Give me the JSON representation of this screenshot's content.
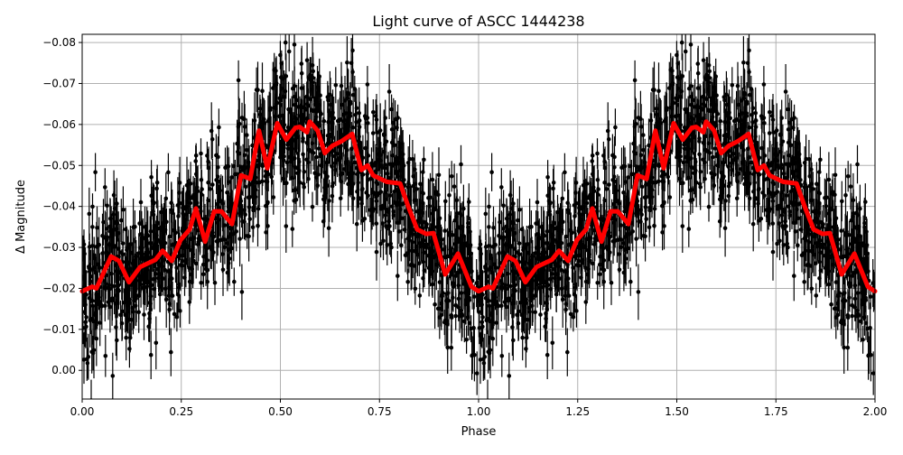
{
  "chart_data": {
    "type": "scatter",
    "title": "Light curve of ASCC 1444238",
    "xlabel": "Phase",
    "ylabel": "Δ Magnitude",
    "xlim": [
      0.0,
      2.0
    ],
    "ylim": [
      0.007,
      -0.082
    ],
    "y_inverted": true,
    "grid": true,
    "xticks": [
      "0.00",
      "0.25",
      "0.50",
      "0.75",
      "1.00",
      "1.25",
      "1.50",
      "1.75",
      "2.00"
    ],
    "yticks": [
      "−0.08",
      "−0.07",
      "−0.06",
      "−0.05",
      "−0.04",
      "−0.03",
      "−0.02",
      "−0.01",
      "0.00"
    ],
    "ytick_values": [
      -0.08,
      -0.07,
      -0.06,
      -0.05,
      -0.04,
      -0.03,
      -0.02,
      -0.01,
      0.0
    ],
    "xtick_values": [
      0,
      0.25,
      0.5,
      0.75,
      1.0,
      1.25,
      1.5,
      1.75,
      2.0
    ],
    "series": [
      {
        "kind": "errorbar-points",
        "color": "#000000"
      },
      {
        "kind": "smoothed-line",
        "color": "#ff0000",
        "period": 1.0,
        "phase": [
          0.0,
          0.025,
          0.036,
          0.073,
          0.093,
          0.118,
          0.146,
          0.185,
          0.203,
          0.226,
          0.248,
          0.271,
          0.287,
          0.31,
          0.333,
          0.351,
          0.378,
          0.401,
          0.424,
          0.446,
          0.467,
          0.492,
          0.515,
          0.538,
          0.549,
          0.567,
          0.574,
          0.594,
          0.612,
          0.631,
          0.654,
          0.681,
          0.704,
          0.72,
          0.734,
          0.768,
          0.802,
          0.822,
          0.845,
          0.868,
          0.886,
          0.916,
          0.948,
          0.982,
          1.0
        ],
        "values": [
          -0.0193,
          -0.0204,
          -0.02,
          -0.0278,
          -0.0267,
          -0.0215,
          -0.0252,
          -0.027,
          -0.0292,
          -0.0267,
          -0.0318,
          -0.0344,
          -0.0395,
          -0.0314,
          -0.0388,
          -0.0388,
          -0.0357,
          -0.0476,
          -0.0467,
          -0.0585,
          -0.0493,
          -0.0603,
          -0.0563,
          -0.0592,
          -0.0594,
          -0.0581,
          -0.0607,
          -0.0585,
          -0.053,
          -0.0548,
          -0.0559,
          -0.0577,
          -0.0489,
          -0.05,
          -0.0476,
          -0.046,
          -0.0456,
          -0.0401,
          -0.0344,
          -0.0333,
          -0.0335,
          -0.0234,
          -0.0285,
          -0.0204,
          -0.0193
        ]
      }
    ]
  }
}
